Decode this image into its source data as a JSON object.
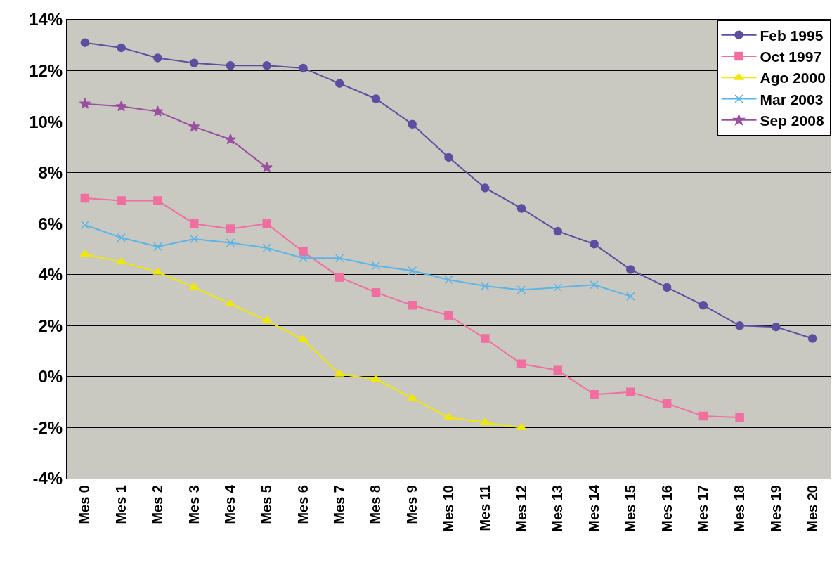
{
  "chart_data": {
    "type": "line",
    "categories": [
      "Mes 0",
      "Mes 1",
      "Mes 2",
      "Mes 3",
      "Mes 4",
      "Mes 5",
      "Mes 6",
      "Mes 7",
      "Mes 8",
      "Mes 9",
      "Mes 10",
      "Mes 11",
      "Mes 12",
      "Mes 13",
      "Mes 14",
      "Mes 15",
      "Mes 16",
      "Mes 17",
      "Mes 18",
      "Mes 19",
      "Mes 20"
    ],
    "series": [
      {
        "name": "Feb 1995",
        "color": "#5b4fa0",
        "marker": "circle",
        "values": [
          13.1,
          12.9,
          12.5,
          12.3,
          12.2,
          12.2,
          12.1,
          11.5,
          10.9,
          9.9,
          8.6,
          7.4,
          6.6,
          5.7,
          5.2,
          4.2,
          3.5,
          2.8,
          2.0,
          1.95,
          1.5
        ]
      },
      {
        "name": "Oct 1997",
        "color": "#f06fa0",
        "marker": "square",
        "values": [
          7.0,
          6.9,
          6.9,
          6.0,
          5.8,
          6.0,
          4.9,
          3.9,
          3.3,
          2.8,
          2.4,
          1.5,
          0.5,
          0.25,
          -0.7,
          -0.6,
          -1.05,
          -1.55,
          -1.6,
          null,
          null
        ]
      },
      {
        "name": "Ago 2000",
        "color": "#f0e800",
        "marker": "triangle",
        "values": [
          4.8,
          4.5,
          4.1,
          3.5,
          2.85,
          2.2,
          1.45,
          0.1,
          -0.1,
          -0.85,
          -1.6,
          -1.8,
          -2.0,
          null,
          null,
          null,
          null,
          null,
          null,
          null,
          null
        ]
      },
      {
        "name": "Mar 2003",
        "color": "#5ab4e8",
        "marker": "cross",
        "values": [
          5.95,
          5.45,
          5.1,
          5.4,
          5.25,
          5.05,
          4.65,
          4.65,
          4.35,
          4.15,
          3.8,
          3.55,
          3.4,
          3.5,
          3.6,
          3.15,
          null,
          null,
          null,
          null,
          null
        ]
      },
      {
        "name": "Sep 2008",
        "color": "#9a4fa0",
        "marker": "star",
        "values": [
          10.7,
          10.6,
          10.4,
          9.8,
          9.3,
          8.2,
          null,
          null,
          null,
          null,
          null,
          null,
          null,
          null,
          null,
          null,
          null,
          null,
          null,
          null,
          null
        ]
      }
    ],
    "ylim": [
      -4,
      14
    ],
    "yticks": [
      {
        "value": -4,
        "label": "-4%"
      },
      {
        "value": -2,
        "label": "-2%"
      },
      {
        "value": 0,
        "label": "0%"
      },
      {
        "value": 2,
        "label": "2%"
      },
      {
        "value": 4,
        "label": "4%"
      },
      {
        "value": 6,
        "label": "6%"
      },
      {
        "value": 8,
        "label": "8%"
      },
      {
        "value": 10,
        "label": "10%"
      },
      {
        "value": 12,
        "label": "12%"
      },
      {
        "value": 14,
        "label": "14%"
      }
    ],
    "grid": "y",
    "legend": "top right",
    "line_style": "solid"
  }
}
